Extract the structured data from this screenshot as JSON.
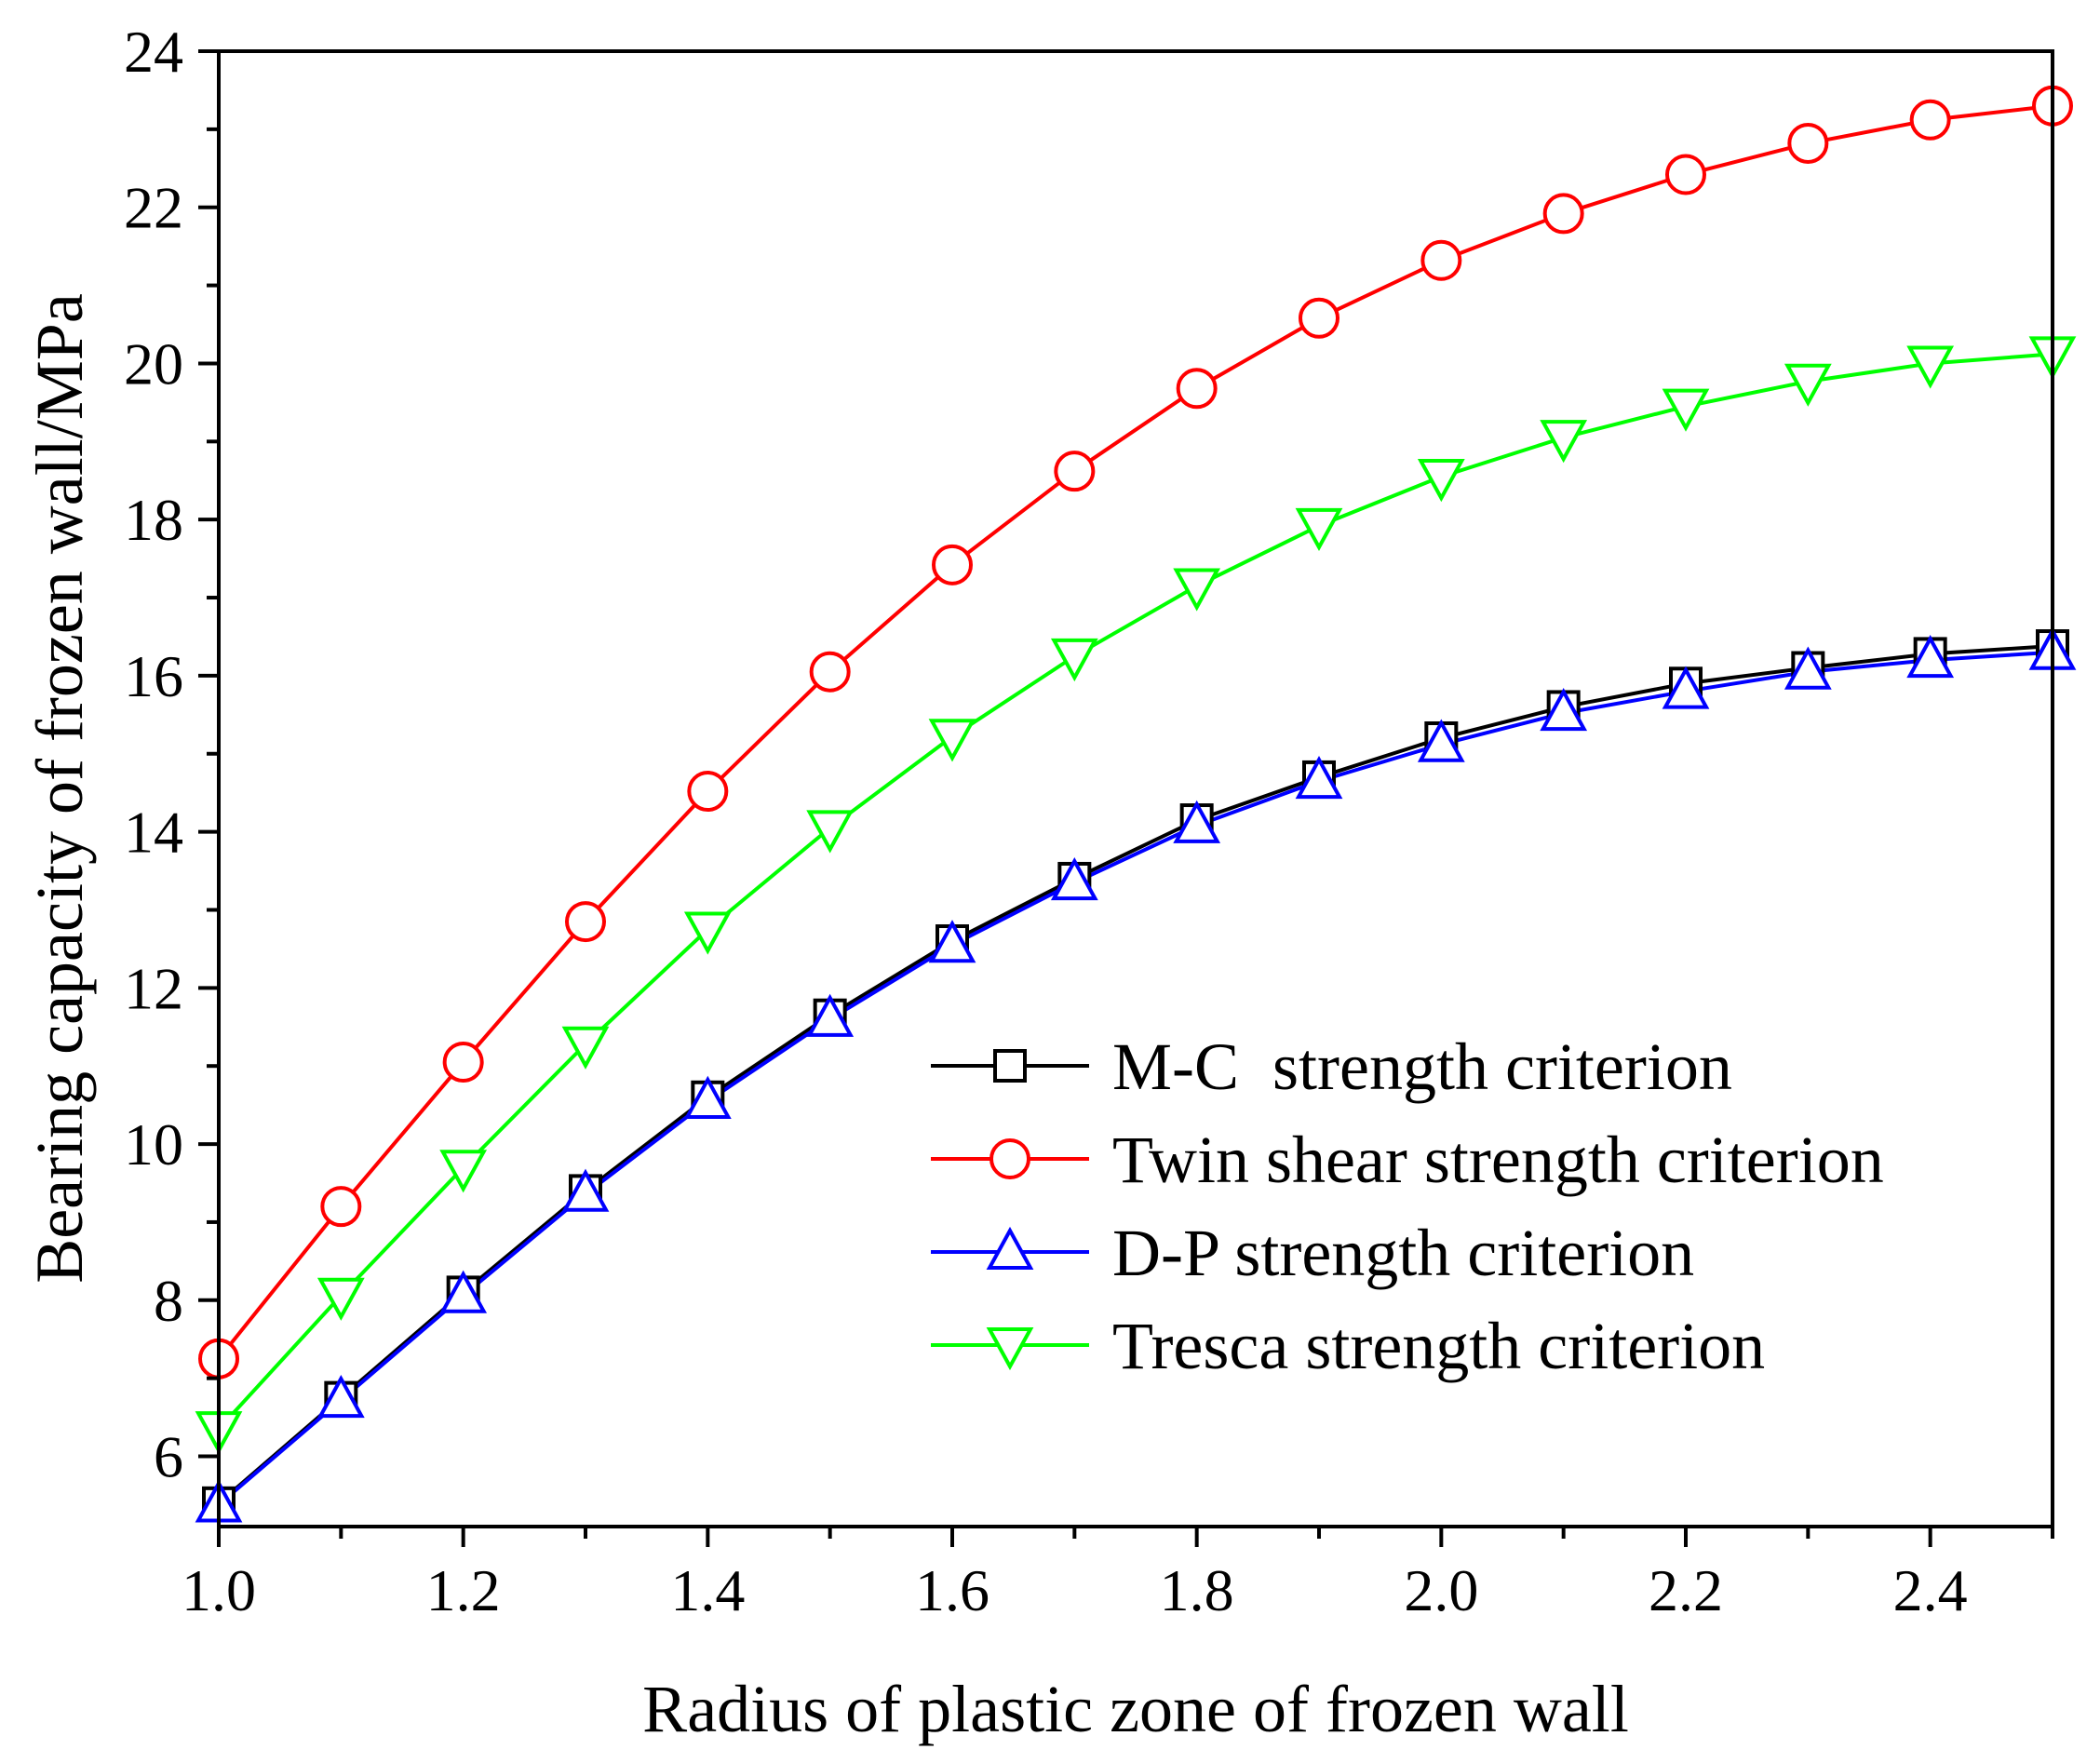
{
  "chart_data": {
    "type": "line",
    "title": "",
    "xlabel": "Radius of plastic zone of frozen wall",
    "ylabel": "Bearing capacity of frozen wall/MPa",
    "xlim": [
      1.0,
      2.5
    ],
    "ylim": [
      5.1,
      24.0
    ],
    "xticks": [
      1.0,
      1.2,
      1.4,
      1.6,
      1.8,
      2.0,
      2.2,
      2.4
    ],
    "xtick_labels": [
      "1.0",
      "1.2",
      "1.4",
      "1.6",
      "1.8",
      "2.0",
      "2.2",
      "2.4"
    ],
    "yticks": [
      6,
      8,
      10,
      12,
      14,
      16,
      18,
      20,
      22,
      24
    ],
    "ytick_labels": [
      "6",
      "8",
      "10",
      "12",
      "14",
      "16",
      "18",
      "20",
      "22",
      "24"
    ],
    "grid": false,
    "legend_position": "lower-right",
    "x": [
      1.0,
      1.1,
      1.2,
      1.3,
      1.4,
      1.5,
      1.6,
      1.7,
      1.8,
      1.9,
      2.0,
      2.1,
      2.2,
      2.3,
      2.4,
      2.5
    ],
    "series": [
      {
        "name": "M-C  strength criterion",
        "color": "#000000",
        "marker": "square",
        "values": [
          5.4,
          6.75,
          8.1,
          9.4,
          10.6,
          11.65,
          12.6,
          13.4,
          14.15,
          14.7,
          15.2,
          15.6,
          15.9,
          16.1,
          16.28,
          16.38
        ]
      },
      {
        "name": "Twin shear strength criterion",
        "color": "#ff0000",
        "marker": "circle",
        "values": [
          7.25,
          9.2,
          11.05,
          12.85,
          14.52,
          16.05,
          17.42,
          18.62,
          19.68,
          20.58,
          21.32,
          21.92,
          22.42,
          22.82,
          23.12,
          23.3
        ]
      },
      {
        "name": "D-P strength criterion",
        "color": "#0000ff",
        "marker": "triangle-up",
        "values": [
          5.38,
          6.72,
          8.06,
          9.36,
          10.55,
          11.6,
          12.55,
          13.35,
          14.08,
          14.65,
          15.12,
          15.52,
          15.8,
          16.05,
          16.2,
          16.3
        ]
      },
      {
        "name": "Tresca strength criterion",
        "color": "#00ff00",
        "marker": "triangle-down",
        "values": [
          6.35,
          8.06,
          9.7,
          11.28,
          12.75,
          14.05,
          15.22,
          16.25,
          17.15,
          17.92,
          18.55,
          19.05,
          19.45,
          19.77,
          20.0,
          20.12
        ]
      }
    ]
  }
}
